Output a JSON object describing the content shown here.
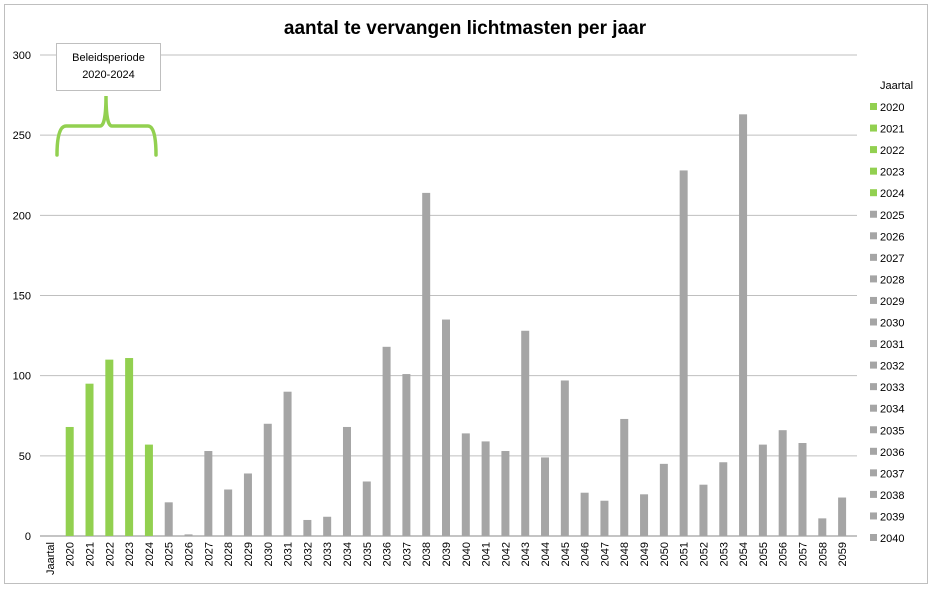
{
  "chart_data": {
    "type": "bar",
    "title": "aantal te vervangen lichtmasten per jaar",
    "xlabel": "Jaartal",
    "ylabel": "",
    "ylim": [
      0,
      300
    ],
    "yticks": [
      0,
      50,
      100,
      150,
      200,
      250,
      300
    ],
    "grid": true,
    "legend_title": "Jaartal",
    "legend_placement": "right",
    "legend_entries": [
      "2020",
      "2021",
      "2022",
      "2023",
      "2024",
      "2025",
      "2026",
      "2027",
      "2028",
      "2029",
      "2030",
      "2031",
      "2032",
      "2033",
      "2034",
      "2035",
      "2036",
      "2037",
      "2038",
      "2039",
      "2040"
    ],
    "categories": [
      "2020",
      "2021",
      "2022",
      "2023",
      "2024",
      "2025",
      "2026",
      "2027",
      "2028",
      "2029",
      "2030",
      "2031",
      "2032",
      "2033",
      "2034",
      "2035",
      "2036",
      "2037",
      "2038",
      "2039",
      "2040",
      "2041",
      "2042",
      "2043",
      "2044",
      "2045",
      "2046",
      "2047",
      "2048",
      "2049",
      "2050",
      "2051",
      "2052",
      "2053",
      "2054",
      "2055",
      "2056",
      "2057",
      "2058",
      "2059"
    ],
    "values": [
      68,
      95,
      110,
      111,
      57,
      21,
      1,
      53,
      29,
      39,
      70,
      90,
      10,
      12,
      68,
      34,
      118,
      101,
      214,
      135,
      64,
      59,
      53,
      128,
      49,
      97,
      27,
      22,
      73,
      26,
      45,
      228,
      32,
      46,
      263,
      57,
      66,
      58,
      11,
      24
    ],
    "highlight_years": [
      "2020",
      "2021",
      "2022",
      "2023",
      "2024"
    ],
    "annotation": {
      "line1": "Beleidsperiode",
      "line2": "2020-2024"
    },
    "colors": {
      "highlight": "#92d050",
      "default": "#a5a5a5",
      "grid": "#bfbfbf"
    }
  }
}
